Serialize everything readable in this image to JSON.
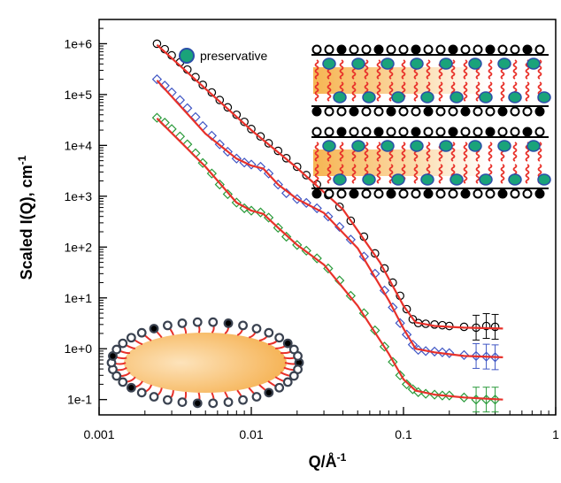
{
  "chart_data": {
    "type": "scatter",
    "title": "",
    "xlabel": "Q/Å",
    "xlabel_sup": "-1",
    "ylabel": "Scaled I(Q), cm",
    "ylabel_sup": "-1",
    "xscale": "log",
    "yscale": "log",
    "xlim": [
      0.001,
      1
    ],
    "ylim": [
      0.05,
      3000000
    ],
    "x_ticks": [
      0.001,
      0.01,
      0.1,
      1
    ],
    "x_tick_labels": [
      "0.001",
      "0.01",
      "0.1",
      "1"
    ],
    "y_ticks": [
      0.1,
      1,
      10,
      100,
      1000,
      10000,
      100000,
      1000000
    ],
    "y_tick_labels": [
      "1e-1",
      "1e+0",
      "1e+1",
      "1e+2",
      "1e+3",
      "1e+4",
      "1e+5",
      "1e+6"
    ],
    "grid": false,
    "legend": {
      "label": "preservative",
      "position": "top-center",
      "marker_fill": "#1aa37a",
      "marker_edge": "#2a4fa8"
    },
    "fit_color": "#e8312a",
    "series": [
      {
        "marker": "circle",
        "color": "#000000",
        "points": [
          [
            0.0024,
            1000000
          ],
          [
            0.0027,
            780000
          ],
          [
            0.003,
            590000
          ],
          [
            0.0034,
            430000
          ],
          [
            0.0038,
            310000
          ],
          [
            0.0043,
            220000
          ],
          [
            0.0048,
            155000
          ],
          [
            0.0055,
            110000
          ],
          [
            0.0062,
            78000
          ],
          [
            0.007,
            56000
          ],
          [
            0.008,
            40000
          ],
          [
            0.009,
            29000
          ],
          [
            0.01,
            21000
          ],
          [
            0.0115,
            15000
          ],
          [
            0.013,
            11000
          ],
          [
            0.015,
            7800
          ],
          [
            0.017,
            5600
          ],
          [
            0.02,
            3800
          ],
          [
            0.023,
            2600
          ],
          [
            0.027,
            1700
          ],
          [
            0.032,
            1050
          ],
          [
            0.038,
            620
          ],
          [
            0.045,
            330
          ],
          [
            0.055,
            160
          ],
          [
            0.065,
            75
          ],
          [
            0.075,
            38
          ],
          [
            0.085,
            20
          ],
          [
            0.095,
            11
          ],
          [
            0.105,
            6
          ],
          [
            0.115,
            3.8
          ],
          [
            0.125,
            3.2
          ],
          [
            0.14,
            3.1
          ],
          [
            0.16,
            3.0
          ],
          [
            0.18,
            2.9
          ],
          [
            0.2,
            2.8
          ],
          [
            0.25,
            2.7
          ],
          [
            0.3,
            2.6
          ],
          [
            0.35,
            2.8
          ],
          [
            0.4,
            2.7
          ]
        ],
        "fit": [
          [
            0.0024,
            950000
          ],
          [
            0.005,
            130000
          ],
          [
            0.01,
            20000
          ],
          [
            0.02,
            3600
          ],
          [
            0.04,
            550
          ],
          [
            0.07,
            50
          ],
          [
            0.1,
            7
          ],
          [
            0.12,
            3.3
          ],
          [
            0.16,
            2.8
          ],
          [
            0.25,
            2.6
          ],
          [
            0.45,
            2.5
          ]
        ]
      },
      {
        "marker": "diamond",
        "color": "#3f56c4",
        "points": [
          [
            0.0024,
            200000
          ],
          [
            0.0027,
            150000
          ],
          [
            0.003,
            110000
          ],
          [
            0.0034,
            78000
          ],
          [
            0.0038,
            54000
          ],
          [
            0.0043,
            36000
          ],
          [
            0.0048,
            24000
          ],
          [
            0.0055,
            15500
          ],
          [
            0.0062,
            10500
          ],
          [
            0.007,
            7500
          ],
          [
            0.008,
            5500
          ],
          [
            0.009,
            4600
          ],
          [
            0.01,
            4200
          ],
          [
            0.0115,
            3800
          ],
          [
            0.013,
            2800
          ],
          [
            0.015,
            1700
          ],
          [
            0.017,
            1150
          ],
          [
            0.02,
            880
          ],
          [
            0.023,
            740
          ],
          [
            0.027,
            580
          ],
          [
            0.032,
            400
          ],
          [
            0.038,
            250
          ],
          [
            0.045,
            140
          ],
          [
            0.055,
            65
          ],
          [
            0.065,
            30
          ],
          [
            0.075,
            14
          ],
          [
            0.085,
            6.5
          ],
          [
            0.095,
            3.2
          ],
          [
            0.105,
            1.9
          ],
          [
            0.115,
            1.2
          ],
          [
            0.125,
            0.95
          ],
          [
            0.14,
            0.9
          ],
          [
            0.16,
            0.88
          ],
          [
            0.18,
            0.85
          ],
          [
            0.2,
            0.82
          ],
          [
            0.25,
            0.75
          ],
          [
            0.3,
            0.72
          ],
          [
            0.35,
            0.7
          ],
          [
            0.4,
            0.68
          ]
        ],
        "fit": [
          [
            0.0024,
            190000
          ],
          [
            0.005,
            17000
          ],
          [
            0.008,
            5500
          ],
          [
            0.01,
            4000
          ],
          [
            0.012,
            3500
          ],
          [
            0.015,
            1700
          ],
          [
            0.02,
            880
          ],
          [
            0.03,
            470
          ],
          [
            0.05,
            95
          ],
          [
            0.08,
            9
          ],
          [
            0.1,
            2.5
          ],
          [
            0.12,
            1.0
          ],
          [
            0.16,
            0.85
          ],
          [
            0.25,
            0.72
          ],
          [
            0.45,
            0.68
          ]
        ]
      },
      {
        "marker": "diamond",
        "color": "#2a9a3a",
        "points": [
          [
            0.0024,
            35000
          ],
          [
            0.0027,
            28000
          ],
          [
            0.003,
            21000
          ],
          [
            0.0034,
            15000
          ],
          [
            0.0038,
            10500
          ],
          [
            0.0043,
            7000
          ],
          [
            0.0048,
            4500
          ],
          [
            0.0055,
            2800
          ],
          [
            0.0062,
            1700
          ],
          [
            0.007,
            1100
          ],
          [
            0.008,
            750
          ],
          [
            0.009,
            580
          ],
          [
            0.01,
            520
          ],
          [
            0.0115,
            480
          ],
          [
            0.013,
            380
          ],
          [
            0.015,
            240
          ],
          [
            0.017,
            160
          ],
          [
            0.02,
            110
          ],
          [
            0.023,
            85
          ],
          [
            0.027,
            60
          ],
          [
            0.032,
            38
          ],
          [
            0.038,
            22
          ],
          [
            0.045,
            11
          ],
          [
            0.055,
            5
          ],
          [
            0.065,
            2.3
          ],
          [
            0.075,
            1.1
          ],
          [
            0.085,
            0.55
          ],
          [
            0.095,
            0.3
          ],
          [
            0.105,
            0.2
          ],
          [
            0.115,
            0.16
          ],
          [
            0.125,
            0.14
          ],
          [
            0.14,
            0.13
          ],
          [
            0.16,
            0.125
          ],
          [
            0.18,
            0.12
          ],
          [
            0.2,
            0.12
          ],
          [
            0.25,
            0.11
          ],
          [
            0.3,
            0.1
          ],
          [
            0.35,
            0.1
          ],
          [
            0.4,
            0.1
          ]
        ],
        "fit": [
          [
            0.0024,
            34000
          ],
          [
            0.005,
            3800
          ],
          [
            0.008,
            750
          ],
          [
            0.01,
            520
          ],
          [
            0.012,
            450
          ],
          [
            0.015,
            240
          ],
          [
            0.02,
            110
          ],
          [
            0.03,
            45
          ],
          [
            0.05,
            7
          ],
          [
            0.08,
            0.8
          ],
          [
            0.1,
            0.25
          ],
          [
            0.12,
            0.15
          ],
          [
            0.16,
            0.125
          ],
          [
            0.25,
            0.11
          ],
          [
            0.45,
            0.1
          ]
        ]
      }
    ]
  }
}
